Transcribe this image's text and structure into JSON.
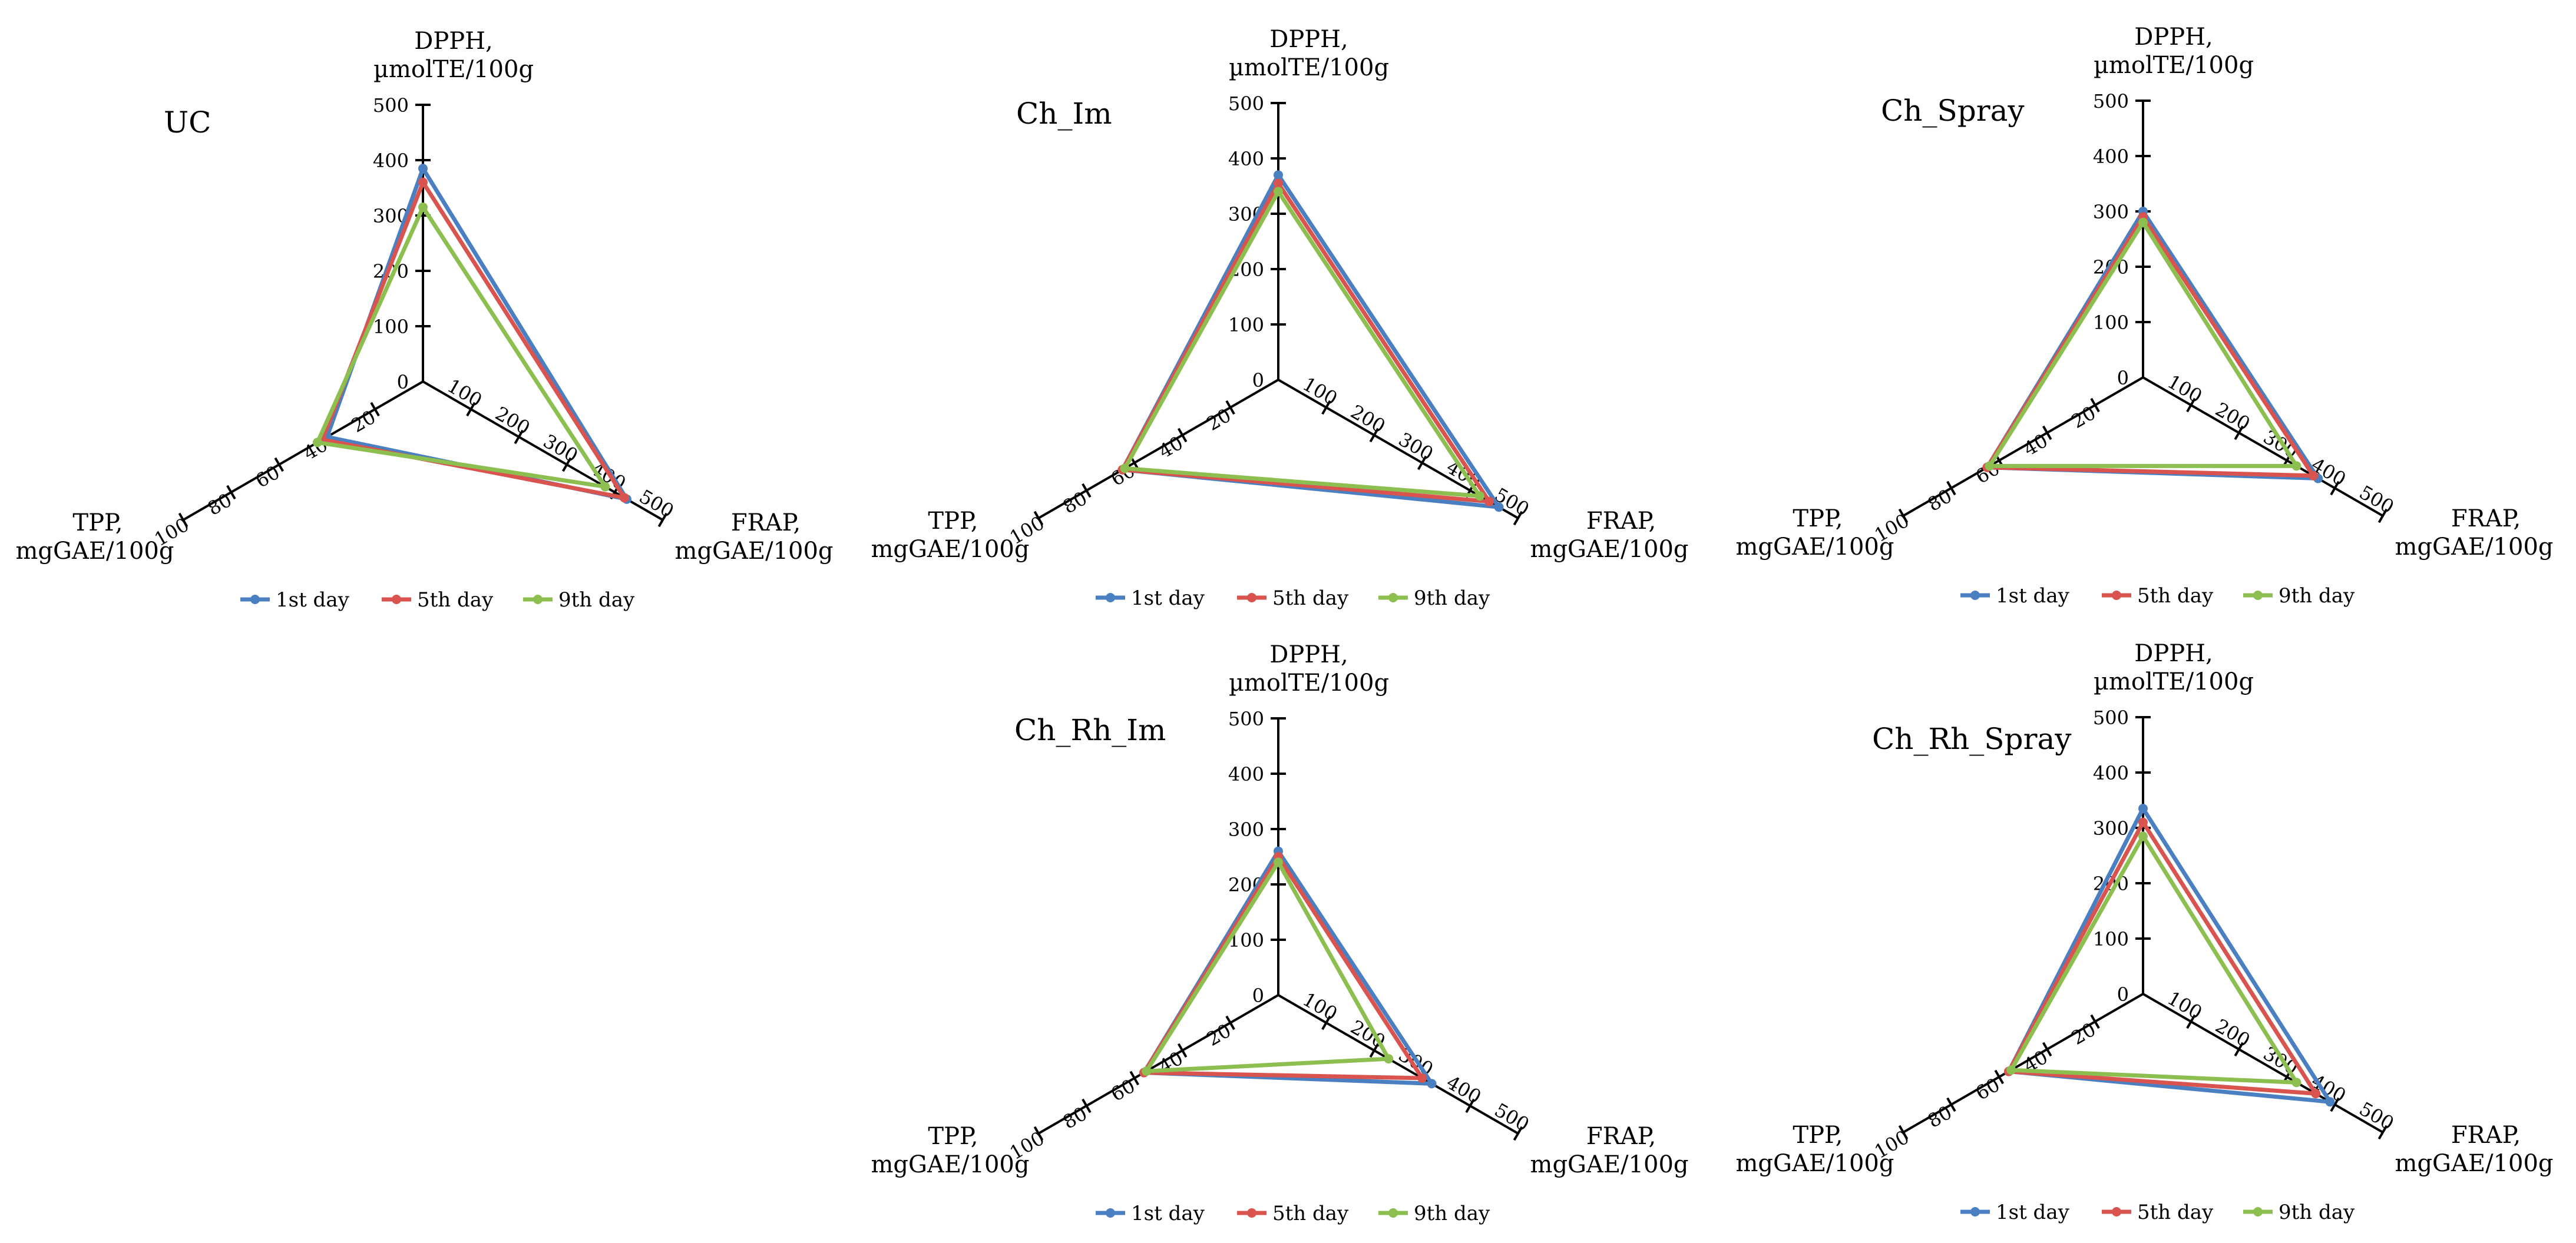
{
  "colors": {
    "1st day": "#4a7fc1",
    "5th day": "#d9534f",
    "9th day": "#8cbf4f"
  },
  "chart_data": [
    {
      "type": "radar",
      "title": "UC",
      "axes": [
        {
          "label_lines": [
            "DPPH,",
            "µmolTE/100g"
          ],
          "ticks": [
            "0",
            "100",
            "200",
            "300",
            "400",
            "500"
          ],
          "range": [
            0,
            500
          ]
        },
        {
          "label_lines": [
            "FRAP,",
            "mgGAE/100g"
          ],
          "ticks": [
            "100",
            "200",
            "300",
            "400",
            "500"
          ],
          "range": [
            0,
            500
          ]
        },
        {
          "label_lines": [
            "TPP,",
            "mgGAE/100g"
          ],
          "ticks": [
            "20",
            "40",
            "60",
            "80",
            "100"
          ],
          "range": [
            0,
            100
          ]
        }
      ],
      "series": [
        {
          "name": "1st day",
          "values": [
            385,
            425,
            40
          ]
        },
        {
          "name": "5th day",
          "values": [
            360,
            420,
            42
          ]
        },
        {
          "name": "9th day",
          "values": [
            315,
            380,
            44
          ]
        }
      ],
      "legend": [
        "1st day",
        "5th day",
        "9th day"
      ],
      "legend_position": "bottom"
    },
    {
      "type": "radar",
      "title": "Ch_Im",
      "axes": [
        {
          "label_lines": [
            "DPPH,",
            "µmolTE/100g"
          ],
          "ticks": [
            "0",
            "100",
            "200",
            "300",
            "400",
            "500"
          ],
          "range": [
            0,
            500
          ]
        },
        {
          "label_lines": [
            "FRAP,",
            "mgGAE/100g"
          ],
          "ticks": [
            "100",
            "200",
            "300",
            "400",
            "500"
          ],
          "range": [
            0,
            500
          ]
        },
        {
          "label_lines": [
            "TPP,",
            "mgGAE/100g"
          ],
          "ticks": [
            "20",
            "40",
            "60",
            "80",
            "100"
          ],
          "range": [
            0,
            100
          ]
        }
      ],
      "series": [
        {
          "name": "1st day",
          "values": [
            370,
            460,
            65
          ]
        },
        {
          "name": "5th day",
          "values": [
            355,
            440,
            65
          ]
        },
        {
          "name": "9th day",
          "values": [
            340,
            420,
            64
          ]
        }
      ],
      "legend": [
        "1st day",
        "5th day",
        "9th day"
      ],
      "legend_position": "bottom"
    },
    {
      "type": "radar",
      "title": "Ch_Spray",
      "axes": [
        {
          "label_lines": [
            "DPPH,",
            "µmolTE/100g"
          ],
          "ticks": [
            "0",
            "100",
            "200",
            "300",
            "400",
            "500"
          ],
          "range": [
            0,
            500
          ]
        },
        {
          "label_lines": [
            "FRAP,",
            "mgGAE/100g"
          ],
          "ticks": [
            "100",
            "200",
            "300",
            "400",
            "500"
          ],
          "range": [
            0,
            500
          ]
        },
        {
          "label_lines": [
            "TPP,",
            "mgGAE/100g"
          ],
          "ticks": [
            "20",
            "40",
            "60",
            "80",
            "100"
          ],
          "range": [
            0,
            100
          ]
        }
      ],
      "series": [
        {
          "name": "1st day",
          "values": [
            300,
            365,
            65
          ]
        },
        {
          "name": "5th day",
          "values": [
            290,
            355,
            65
          ]
        },
        {
          "name": "9th day",
          "values": [
            280,
            320,
            64
          ]
        }
      ],
      "legend": [
        "1st day",
        "5th day",
        "9th day"
      ],
      "legend_position": "bottom"
    },
    {
      "type": "radar",
      "title": "Ch_Rh_Im",
      "axes": [
        {
          "label_lines": [
            "DPPH,",
            "µmolTE/100g"
          ],
          "ticks": [
            "0",
            "100",
            "200",
            "300",
            "400",
            "500"
          ],
          "range": [
            0,
            500
          ]
        },
        {
          "label_lines": [
            "FRAP,",
            "mgGAE/100g"
          ],
          "ticks": [
            "100",
            "200",
            "300",
            "400",
            "500"
          ],
          "range": [
            0,
            500
          ]
        },
        {
          "label_lines": [
            "TPP,",
            "mgGAE/100g"
          ],
          "ticks": [
            "20",
            "40",
            "60",
            "80",
            "100"
          ],
          "range": [
            0,
            100
          ]
        }
      ],
      "series": [
        {
          "name": "1st day",
          "values": [
            260,
            320,
            56
          ]
        },
        {
          "name": "5th day",
          "values": [
            250,
            300,
            56
          ]
        },
        {
          "name": "9th day",
          "values": [
            240,
            230,
            55
          ]
        }
      ],
      "legend": [
        "1st day",
        "5th day",
        "9th day"
      ],
      "legend_position": "bottom"
    },
    {
      "type": "radar",
      "title": "Ch_Rh_Spray",
      "axes": [
        {
          "label_lines": [
            "DPPH,",
            "µmolTE/100g"
          ],
          "ticks": [
            "0",
            "100",
            "200",
            "300",
            "400",
            "500"
          ],
          "range": [
            0,
            500
          ]
        },
        {
          "label_lines": [
            "FRAP,",
            "mgGAE/100g"
          ],
          "ticks": [
            "100",
            "200",
            "300",
            "400",
            "500"
          ],
          "range": [
            0,
            500
          ]
        },
        {
          "label_lines": [
            "TPP,",
            "mgGAE/100g"
          ],
          "ticks": [
            "20",
            "40",
            "60",
            "80",
            "100"
          ],
          "range": [
            0,
            100
          ]
        }
      ],
      "series": [
        {
          "name": "1st day",
          "values": [
            335,
            390,
            56
          ]
        },
        {
          "name": "5th day",
          "values": [
            310,
            360,
            56
          ]
        },
        {
          "name": "9th day",
          "values": [
            285,
            320,
            55
          ]
        }
      ],
      "legend": [
        "1st day",
        "5th day",
        "9th day"
      ],
      "legend_position": "bottom"
    }
  ]
}
